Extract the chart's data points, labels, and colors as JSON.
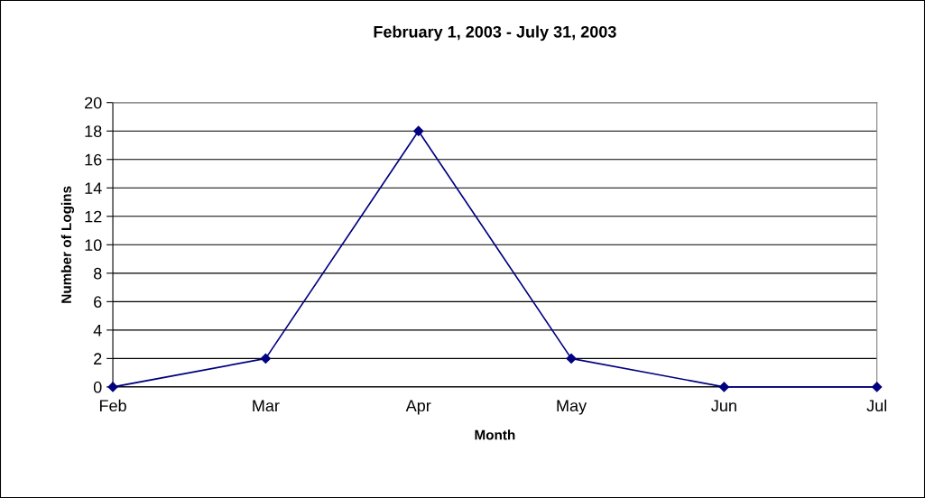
{
  "chart_data": {
    "type": "line",
    "title": "February 1, 2003 - July 31, 2003",
    "xlabel": "Month",
    "ylabel": "Number of Logins",
    "categories": [
      "Feb",
      "Mar",
      "Apr",
      "May",
      "Jun",
      "Jul"
    ],
    "series": [
      {
        "color": "#000080",
        "values": [
          0,
          2,
          18,
          2,
          0,
          0
        ]
      }
    ],
    "ylim": [
      0,
      20
    ],
    "yticks": [
      0,
      2,
      4,
      6,
      8,
      10,
      12,
      14,
      16,
      18,
      20
    ],
    "grid": "y",
    "marker": "diamond",
    "line_style": "solid"
  }
}
